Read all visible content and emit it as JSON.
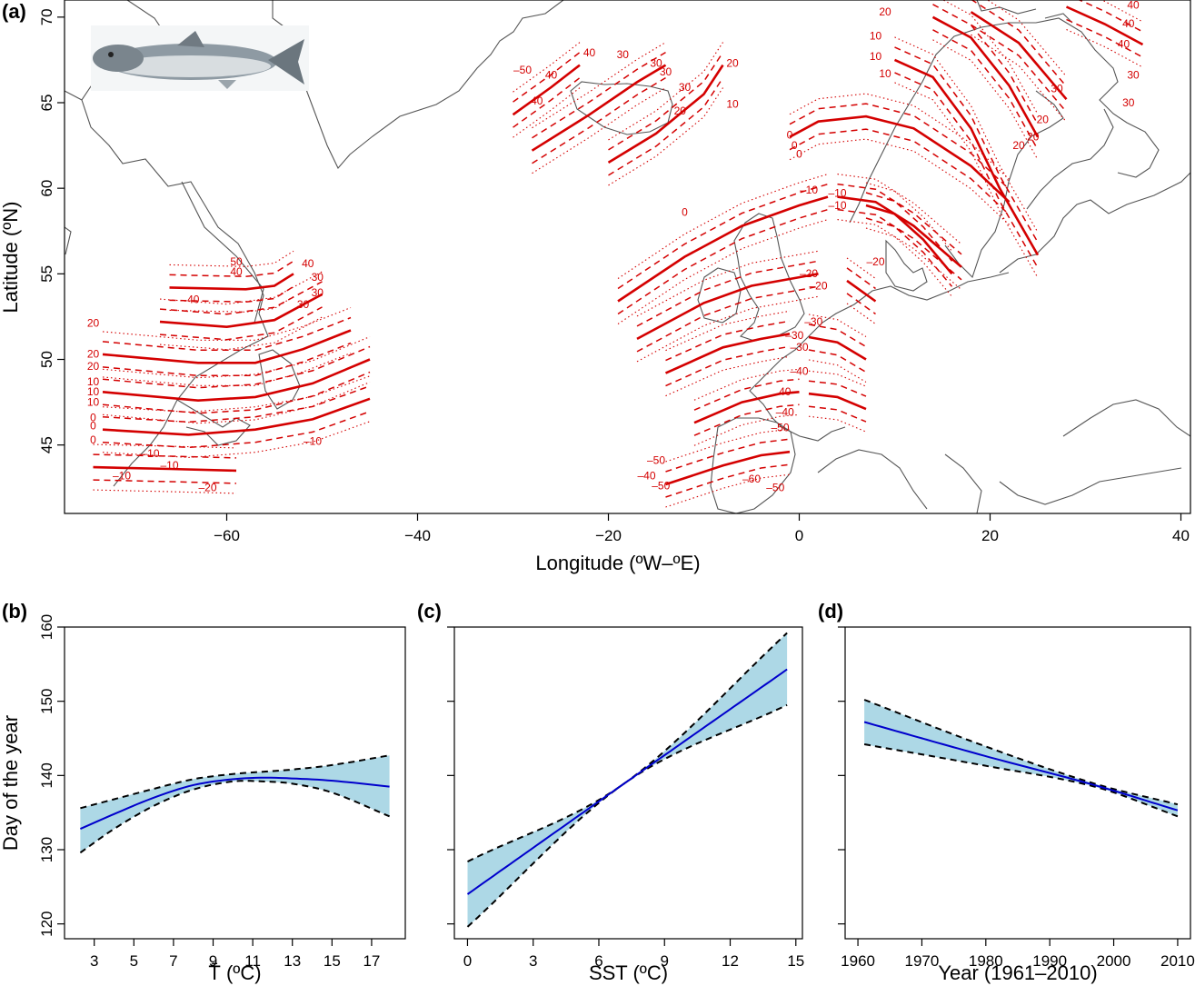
{
  "chart_data": [
    {
      "type": "map",
      "panel_label": "(a)",
      "xlabel": "Longitude (ºW–ºE)",
      "ylabel": "Latitude (ºN)",
      "xlim": [
        -77,
        41
      ],
      "ylim": [
        41,
        71
      ],
      "xticks": [
        -60,
        -40,
        -20,
        0,
        20,
        40
      ],
      "yticks": [
        45,
        50,
        55,
        60,
        65,
        70
      ],
      "image_icon": "atlantic-salmon-illustration",
      "line_color": "#d40000",
      "isolines": [
        {
          "region": "northwest-atlantic",
          "style": "solid",
          "value": 40,
          "points": [
            [
              -66,
              54.2
            ],
            [
              -58,
              54.1
            ],
            [
              -55,
              54.3
            ],
            [
              -53,
              55
            ]
          ]
        },
        {
          "region": "northwest-atlantic",
          "style": "solid",
          "value": 30,
          "points": [
            [
              -67,
              52.2
            ],
            [
              -60,
              51.9
            ],
            [
              -55,
              52.3
            ],
            [
              -50,
              53.8
            ]
          ]
        },
        {
          "region": "northwest-atlantic",
          "style": "solid",
          "value": 20,
          "points": [
            [
              -73,
              50.3
            ],
            [
              -63,
              49.8
            ],
            [
              -57,
              49.8
            ],
            [
              -52,
              50.6
            ],
            [
              -47,
              51.7
            ]
          ]
        },
        {
          "region": "northwest-atlantic",
          "style": "solid",
          "value": 10,
          "points": [
            [
              -73,
              48.1
            ],
            [
              -63,
              47.6
            ],
            [
              -57,
              47.8
            ],
            [
              -51,
              48.6
            ],
            [
              -45,
              50
            ]
          ]
        },
        {
          "region": "northwest-atlantic",
          "style": "solid",
          "value": 0,
          "points": [
            [
              -73,
              45.9
            ],
            [
              -64,
              45.6
            ],
            [
              -57,
              45.9
            ],
            [
              -51,
              46.5
            ],
            [
              -45,
              47.7
            ]
          ]
        },
        {
          "region": "northwest-atlantic",
          "style": "solid",
          "value": -10,
          "points": [
            [
              -74,
              43.7
            ],
            [
              -66,
              43.6
            ],
            [
              -59,
              43.5
            ]
          ]
        },
        {
          "region": "iceland",
          "style": "solid",
          "value": 40,
          "points": [
            [
              -30,
              64.3
            ],
            [
              -26,
              65.9
            ],
            [
              -23,
              67.2
            ]
          ]
        },
        {
          "region": "iceland",
          "style": "solid",
          "value": 30,
          "points": [
            [
              -28,
              62.2
            ],
            [
              -22,
              64.3
            ],
            [
              -17,
              66.2
            ],
            [
              -14,
              67.2
            ]
          ]
        },
        {
          "region": "iceland",
          "style": "solid",
          "value": 20,
          "points": [
            [
              -20,
              61.5
            ],
            [
              -15,
              63.2
            ],
            [
              -10,
              65.5
            ],
            [
              -8,
              67.2
            ]
          ]
        },
        {
          "region": "europe",
          "style": "solid",
          "value": -10,
          "points": [
            [
              -19,
              53.4
            ],
            [
              -12,
              56
            ],
            [
              -6,
              57.8
            ],
            [
              0,
              59
            ],
            [
              3,
              59.5
            ]
          ]
        },
        {
          "region": "europe",
          "style": "solid",
          "value": -20,
          "points": [
            [
              -17,
              51.2
            ],
            [
              -10,
              53.3
            ],
            [
              -5,
              54.3
            ],
            [
              0,
              54.8
            ],
            [
              2,
              55
            ]
          ]
        },
        {
          "region": "europe",
          "style": "solid",
          "value": -30,
          "points": [
            [
              -14,
              49.2
            ],
            [
              -8,
              50.7
            ],
            [
              -4,
              51.2
            ],
            [
              -1,
              51.5
            ]
          ]
        },
        {
          "region": "europe",
          "style": "solid",
          "value": -40,
          "points": [
            [
              -11,
              46.3
            ],
            [
              -6,
              47.5
            ],
            [
              -2,
              48
            ],
            [
              0,
              48.1
            ]
          ]
        },
        {
          "region": "europe",
          "style": "solid",
          "value": -50,
          "points": [
            [
              -14,
              42.7
            ],
            [
              -8,
              43.8
            ],
            [
              -4,
              44.4
            ],
            [
              -1,
              44.6
            ]
          ]
        },
        {
          "region": "europe",
          "style": "solid",
          "value": -20,
          "points": [
            [
              5,
              54.6
            ],
            [
              6,
              54.2
            ],
            [
              8,
              53.4
            ]
          ]
        },
        {
          "region": "europe",
          "style": "solid",
          "value": -30,
          "points": [
            [
              1,
              51.3
            ],
            [
              4,
              51
            ],
            [
              7,
              50
            ]
          ]
        },
        {
          "region": "europe",
          "style": "solid",
          "value": -40,
          "points": [
            [
              1,
              48
            ],
            [
              4,
              47.8
            ],
            [
              7,
              47.1
            ]
          ]
        },
        {
          "region": "scandinavia",
          "style": "solid",
          "value": 0,
          "points": [
            [
              -1,
              63
            ],
            [
              2,
              63.9
            ],
            [
              7,
              64.2
            ],
            [
              12,
              63.5
            ],
            [
              18,
              61.3
            ],
            [
              22,
              59.2
            ]
          ]
        },
        {
          "region": "scandinavia",
          "style": "solid",
          "value": -10,
          "points": [
            [
              4,
              59.5
            ],
            [
              8,
              59.2
            ],
            [
              12,
              57.8
            ],
            [
              17,
              55.4
            ]
          ]
        },
        {
          "region": "scandinavia",
          "style": "solid",
          "value": -10,
          "points": [
            [
              7,
              59
            ],
            [
              10,
              58.5
            ],
            [
              13,
              57
            ],
            [
              16,
              55
            ]
          ]
        },
        {
          "region": "scandinavia",
          "style": "solid",
          "value": 10,
          "points": [
            [
              10,
              67.5
            ],
            [
              14,
              66.5
            ],
            [
              18,
              63.5
            ],
            [
              21,
              60
            ],
            [
              25,
              56.1
            ]
          ]
        },
        {
          "region": "scandinavia",
          "style": "solid",
          "value": 20,
          "points": [
            [
              14,
              70
            ],
            [
              18,
              68.8
            ],
            [
              22,
              66
            ],
            [
              25,
              63
            ]
          ]
        },
        {
          "region": "scandinavia",
          "style": "solid",
          "value": 30,
          "points": [
            [
              18,
              70.3
            ],
            [
              23,
              68.5
            ],
            [
              28,
              65.2
            ]
          ]
        },
        {
          "region": "scandinavia",
          "style": "solid",
          "value": 40,
          "points": [
            [
              28,
              70.6
            ],
            [
              32,
              69.6
            ],
            [
              36,
              68.4
            ]
          ]
        }
      ],
      "isoline_labels": [
        {
          "text": "50",
          "lon": -59,
          "lat": 55.5
        },
        {
          "text": "40",
          "lon": -59,
          "lat": 54.9
        },
        {
          "text": "40",
          "lon": -51.5,
          "lat": 55.4
        },
        {
          "text": "40",
          "lon": -63.5,
          "lat": 53.3
        },
        {
          "text": "30",
          "lon": -50.5,
          "lat": 54.6
        },
        {
          "text": "30",
          "lon": -50.5,
          "lat": 53.7
        },
        {
          "text": "30",
          "lon": -52,
          "lat": 53.0
        },
        {
          "text": "20",
          "lon": -74,
          "lat": 51.9
        },
        {
          "text": "20",
          "lon": -74,
          "lat": 50.1
        },
        {
          "text": "20",
          "lon": -74,
          "lat": 49.4
        },
        {
          "text": "10",
          "lon": -74,
          "lat": 48.5
        },
        {
          "text": "10",
          "lon": -74,
          "lat": 47.9
        },
        {
          "text": "10",
          "lon": -74,
          "lat": 47.3
        },
        {
          "text": "0",
          "lon": -74,
          "lat": 46.4
        },
        {
          "text": "0",
          "lon": -74,
          "lat": 45.9
        },
        {
          "text": "0",
          "lon": -74,
          "lat": 45.1
        },
        {
          "text": "–10",
          "lon": -66,
          "lat": 43.6
        },
        {
          "text": "–10",
          "lon": -71,
          "lat": 43.0
        },
        {
          "text": "–10",
          "lon": -68,
          "lat": 44.3
        },
        {
          "text": "–10",
          "lon": -51,
          "lat": 45.0
        },
        {
          "text": "–20",
          "lon": -62,
          "lat": 42.3
        },
        {
          "text": "–50",
          "lon": -29,
          "lat": 66.7
        },
        {
          "text": "40",
          "lon": -26,
          "lat": 66.4
        },
        {
          "text": "40",
          "lon": -27.5,
          "lat": 64.9
        },
        {
          "text": "40",
          "lon": -22,
          "lat": 67.7
        },
        {
          "text": "30",
          "lon": -18.5,
          "lat": 67.6
        },
        {
          "text": "30",
          "lon": -15,
          "lat": 67.1
        },
        {
          "text": "30",
          "lon": -14,
          "lat": 66.6
        },
        {
          "text": "30",
          "lon": -12,
          "lat": 65.7
        },
        {
          "text": "20",
          "lon": -12.5,
          "lat": 64.3
        },
        {
          "text": "20",
          "lon": -7,
          "lat": 67.1
        },
        {
          "text": "10",
          "lon": -7,
          "lat": 64.7
        },
        {
          "text": "0",
          "lon": -12,
          "lat": 58.4
        },
        {
          "text": "0",
          "lon": -1,
          "lat": 62.9
        },
        {
          "text": "0",
          "lon": -0.5,
          "lat": 62.3
        },
        {
          "text": "0",
          "lon": 0,
          "lat": 61.8
        },
        {
          "text": "–10",
          "lon": 1,
          "lat": 59.7
        },
        {
          "text": "–10",
          "lon": 4,
          "lat": 59.5
        },
        {
          "text": "–10",
          "lon": 4,
          "lat": 58.8
        },
        {
          "text": "–20",
          "lon": 8,
          "lat": 55.5
        },
        {
          "text": "–20",
          "lon": 1,
          "lat": 54.8
        },
        {
          "text": "–20",
          "lon": 2,
          "lat": 54.1
        },
        {
          "text": "–30",
          "lon": 1.5,
          "lat": 52
        },
        {
          "text": "–30",
          "lon": -0.5,
          "lat": 51.2
        },
        {
          "text": "–30",
          "lon": 0,
          "lat": 50.5
        },
        {
          "text": "–40",
          "lon": 0,
          "lat": 49.1
        },
        {
          "text": "40",
          "lon": -1.5,
          "lat": 47.9
        },
        {
          "text": "–40",
          "lon": -1.5,
          "lat": 46.7
        },
        {
          "text": "–50",
          "lon": -2,
          "lat": 45.8
        },
        {
          "text": "–50",
          "lon": -15,
          "lat": 43.9
        },
        {
          "text": "–40",
          "lon": -16,
          "lat": 43.0
        },
        {
          "text": "–50",
          "lon": -14.5,
          "lat": 42.4
        },
        {
          "text": "–60",
          "lon": -5,
          "lat": 42.8
        },
        {
          "text": "–50",
          "lon": -2.5,
          "lat": 42.3
        },
        {
          "text": "20",
          "lon": 9,
          "lat": 70.1
        },
        {
          "text": "10",
          "lon": 8,
          "lat": 68.7
        },
        {
          "text": "10",
          "lon": 8,
          "lat": 67.5
        },
        {
          "text": "10",
          "lon": 9,
          "lat": 66.5
        },
        {
          "text": "20",
          "lon": 23,
          "lat": 62.3
        },
        {
          "text": "20",
          "lon": 24.5,
          "lat": 62.8
        },
        {
          "text": "20",
          "lon": 25.5,
          "lat": 63.8
        },
        {
          "text": "30",
          "lon": 27,
          "lat": 65.6
        },
        {
          "text": "30",
          "lon": 35,
          "lat": 66.4
        },
        {
          "text": "30",
          "lon": 34.5,
          "lat": 64.8
        },
        {
          "text": "40",
          "lon": 35,
          "lat": 70.5
        },
        {
          "text": "40",
          "lon": 34.5,
          "lat": 69.4
        },
        {
          "text": "40",
          "lon": 34,
          "lat": 68.2
        }
      ]
    },
    {
      "type": "line",
      "panel_label": "(b)",
      "xlabel": "T̄ (ºC)",
      "ylabel": "Day of the year",
      "xlim": [
        1.5,
        18.7
      ],
      "ylim": [
        118,
        160
      ],
      "xticks": [
        3,
        5,
        7,
        9,
        11,
        13,
        15,
        17
      ],
      "yticks": [
        120,
        130,
        140,
        150,
        160
      ],
      "series_color": "#0000cc",
      "band_color": "#add8e6",
      "x": [
        2.3,
        4,
        6,
        8,
        10,
        11.5,
        13,
        15,
        17.9
      ],
      "fit": [
        132.8,
        134.8,
        137.0,
        138.7,
        139.5,
        139.7,
        139.6,
        139.3,
        138.5
      ],
      "lower": [
        129.6,
        132.8,
        135.9,
        138.1,
        139.2,
        139.2,
        138.9,
        137.7,
        134.5
      ],
      "upper": [
        135.6,
        136.8,
        138.2,
        139.5,
        140.2,
        140.5,
        140.8,
        141.4,
        142.7
      ]
    },
    {
      "type": "line",
      "panel_label": "(c)",
      "xlabel": "SST (ºC)",
      "xlim": [
        -0.6,
        15.3
      ],
      "ylim": [
        118,
        160
      ],
      "xticks": [
        0,
        3,
        6,
        9,
        12,
        15
      ],
      "yticks": [
        120,
        130,
        140,
        150,
        160
      ],
      "series_color": "#0000cc",
      "band_color": "#add8e6",
      "x": [
        0,
        7.2,
        14.6
      ],
      "fit": [
        124.0,
        139.0,
        154.3
      ],
      "lower": [
        119.6,
        139.0,
        149.5
      ],
      "upper": [
        128.4,
        139.0,
        159.2
      ]
    },
    {
      "type": "line",
      "panel_label": "(d)",
      "xlabel": "Year (1961–2010)",
      "xlim": [
        1958,
        2012
      ],
      "ylim": [
        118,
        160
      ],
      "xticks": [
        1960,
        1970,
        1980,
        1990,
        2000,
        2010
      ],
      "yticks": [
        120,
        130,
        140,
        150,
        160
      ],
      "series_color": "#0000cc",
      "band_color": "#add8e6",
      "x": [
        1961,
        1980,
        1997,
        2010
      ],
      "fit": [
        147.2,
        142.6,
        138.7,
        135.3
      ],
      "lower": [
        144.2,
        141.3,
        138.5,
        134.5
      ],
      "upper": [
        150.2,
        143.9,
        138.9,
        136.1
      ]
    }
  ]
}
